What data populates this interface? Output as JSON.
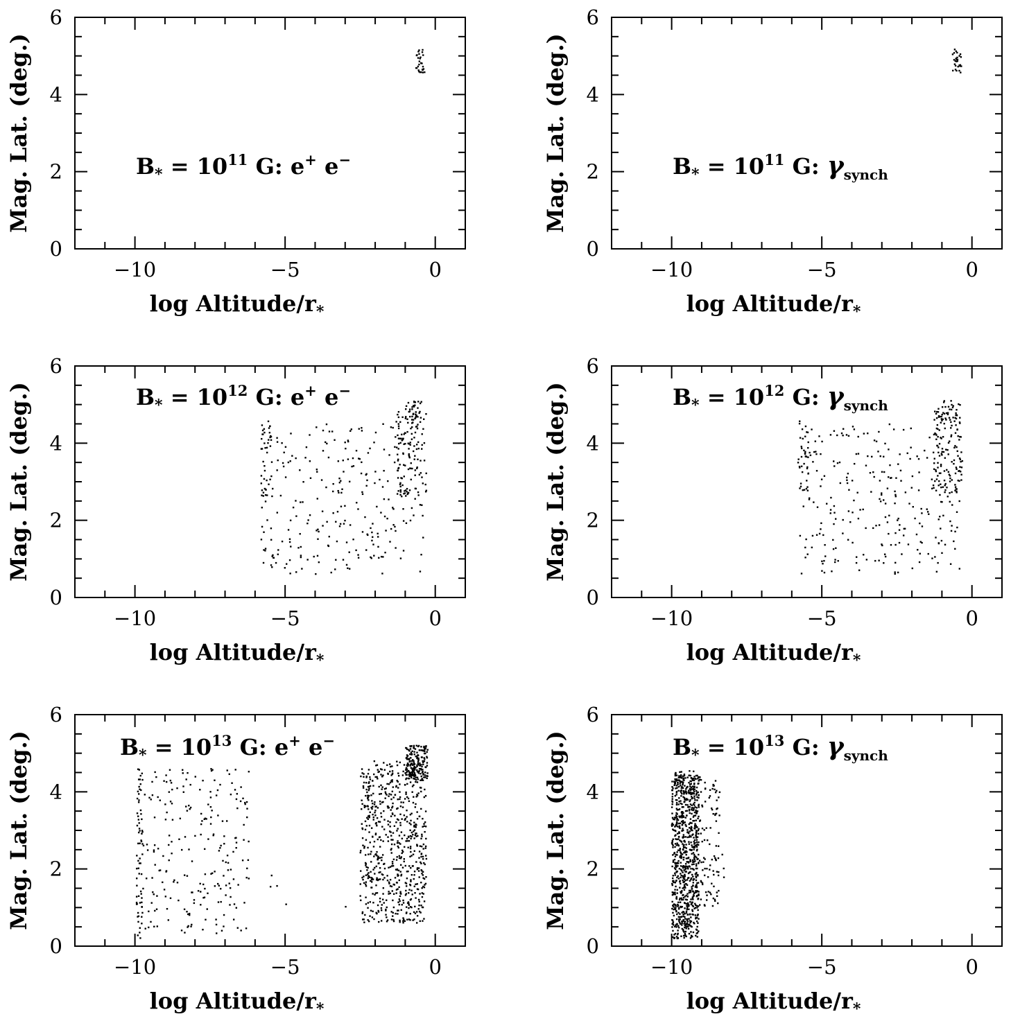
{
  "chart_data": [
    {
      "type": "scatter",
      "panel": "top-left",
      "annotation": {
        "prefix": "B",
        "sub": "*",
        "eq": " = 10",
        "exp": "11",
        "rest": " G: e",
        "sup1": "+",
        "mid": " e",
        "sup2": "−",
        "synch": false
      },
      "xlabel": "log Altitude/r",
      "xlabel_sub": "*",
      "ylabel": "Mag. Lat. (deg.)",
      "xlim": [
        -12,
        1
      ],
      "ylim": [
        0,
        6
      ],
      "xticks": [
        {
          "v": -10,
          "t": "−10"
        },
        {
          "v": -5,
          "t": "−5"
        },
        {
          "v": 0,
          "t": "0"
        }
      ],
      "yticks": [
        {
          "v": 0,
          "t": "0"
        },
        {
          "v": 2,
          "t": "2"
        },
        {
          "v": 4,
          "t": "4"
        },
        {
          "v": 6,
          "t": "6"
        }
      ],
      "clusters": [
        {
          "n": 28,
          "x": [
            -0.65,
            -0.35
          ],
          "y": [
            4.55,
            5.2
          ],
          "seed": 11
        }
      ]
    },
    {
      "type": "scatter",
      "panel": "top-right",
      "annotation": {
        "prefix": "B",
        "sub": "*",
        "eq": " = 10",
        "exp": "11",
        "rest": " G: ",
        "synch": true,
        "gamma": "γ",
        "gamma_sub": "synch"
      },
      "xlabel": "log Altitude/r",
      "xlabel_sub": "*",
      "ylabel": "Mag. Lat. (deg.)",
      "xlim": [
        -12,
        1
      ],
      "ylim": [
        0,
        6
      ],
      "xticks": [
        {
          "v": -10,
          "t": "−10"
        },
        {
          "v": -5,
          "t": "−5"
        },
        {
          "v": 0,
          "t": "0"
        }
      ],
      "yticks": [
        {
          "v": 0,
          "t": "0"
        },
        {
          "v": 2,
          "t": "2"
        },
        {
          "v": 4,
          "t": "4"
        },
        {
          "v": 6,
          "t": "6"
        }
      ],
      "clusters": [
        {
          "n": 28,
          "x": [
            -0.65,
            -0.35
          ],
          "y": [
            4.55,
            5.2
          ],
          "seed": 12
        }
      ]
    },
    {
      "type": "scatter",
      "panel": "middle-left",
      "annotation": {
        "prefix": "B",
        "sub": "*",
        "eq": " = 10",
        "exp": "12",
        "rest": " G: e",
        "sup1": "+",
        "mid": " e",
        "sup2": "−",
        "synch": false
      },
      "xlabel": "log Altitude/r",
      "xlabel_sub": "*",
      "ylabel": "Mag. Lat. (deg.)",
      "xlim": [
        -12,
        1
      ],
      "ylim": [
        0,
        6
      ],
      "xticks": [
        {
          "v": -10,
          "t": "−10"
        },
        {
          "v": -5,
          "t": "−5"
        },
        {
          "v": 0,
          "t": "0"
        }
      ],
      "yticks": [
        {
          "v": 0,
          "t": "0"
        },
        {
          "v": 2,
          "t": "2"
        },
        {
          "v": 4,
          "t": "4"
        },
        {
          "v": 6,
          "t": "6"
        }
      ],
      "clusters": [
        {
          "n": 260,
          "x": [
            -5.8,
            -0.4
          ],
          "y": [
            0.6,
            4.5
          ],
          "seed": 21
        },
        {
          "n": 40,
          "x": [
            -5.8,
            -5.4
          ],
          "y": [
            2.5,
            4.6
          ],
          "seed": 22
        },
        {
          "n": 120,
          "x": [
            -1.3,
            -0.3
          ],
          "y": [
            2.6,
            4.9
          ],
          "seed": 23
        },
        {
          "n": 25,
          "x": [
            -1.0,
            -0.4
          ],
          "y": [
            4.6,
            5.1
          ],
          "seed": 24
        }
      ]
    },
    {
      "type": "scatter",
      "panel": "middle-right",
      "annotation": {
        "prefix": "B",
        "sub": "*",
        "eq": " = 10",
        "exp": "12",
        "rest": " G: ",
        "synch": true,
        "gamma": "γ",
        "gamma_sub": "synch"
      },
      "xlabel": "log Altitude/r",
      "xlabel_sub": "*",
      "ylabel": "Mag. Lat. (deg.)",
      "xlim": [
        -12,
        1
      ],
      "ylim": [
        0,
        6
      ],
      "xticks": [
        {
          "v": -10,
          "t": "−10"
        },
        {
          "v": -5,
          "t": "−5"
        },
        {
          "v": 0,
          "t": "0"
        }
      ],
      "yticks": [
        {
          "v": 0,
          "t": "0"
        },
        {
          "v": 2,
          "t": "2"
        },
        {
          "v": 4,
          "t": "4"
        },
        {
          "v": 6,
          "t": "6"
        }
      ],
      "clusters": [
        {
          "n": 260,
          "x": [
            -5.8,
            -0.4
          ],
          "y": [
            0.6,
            4.5
          ],
          "seed": 31
        },
        {
          "n": 40,
          "x": [
            -5.8,
            -5.4
          ],
          "y": [
            2.5,
            4.6
          ],
          "seed": 32
        },
        {
          "n": 120,
          "x": [
            -1.3,
            -0.3
          ],
          "y": [
            2.6,
            4.9
          ],
          "seed": 33
        },
        {
          "n": 25,
          "x": [
            -1.0,
            -0.4
          ],
          "y": [
            4.6,
            5.1
          ],
          "seed": 34
        }
      ]
    },
    {
      "type": "scatter",
      "panel": "bottom-left",
      "annotation": {
        "prefix": "B",
        "sub": "*",
        "eq": " = 10",
        "exp": "13",
        "rest": " G: e",
        "sup1": "+",
        "mid": " e",
        "sup2": "−",
        "synch": false
      },
      "xlabel": "log Altitude/r",
      "xlabel_sub": "*",
      "ylabel": "Mag. Lat. (deg.)",
      "xlim": [
        -12,
        1
      ],
      "ylim": [
        0,
        6
      ],
      "xticks": [
        {
          "v": -10,
          "t": "−10"
        },
        {
          "v": -5,
          "t": "−5"
        },
        {
          "v": 0,
          "t": "0"
        }
      ],
      "yticks": [
        {
          "v": 0,
          "t": "0"
        },
        {
          "v": 2,
          "t": "2"
        },
        {
          "v": 4,
          "t": "4"
        },
        {
          "v": 6,
          "t": "6"
        }
      ],
      "clusters": [
        {
          "n": 70,
          "x": [
            -9.95,
            -9.75
          ],
          "y": [
            0.2,
            4.6
          ],
          "seed": 41
        },
        {
          "n": 220,
          "x": [
            -9.8,
            -6.2
          ],
          "y": [
            0.3,
            4.6
          ],
          "seed": 42
        },
        {
          "n": 6,
          "x": [
            -6.5,
            -2.5
          ],
          "y": [
            0.9,
            4.5
          ],
          "seed": 43
        },
        {
          "n": 700,
          "x": [
            -2.5,
            -0.3
          ],
          "y": [
            0.6,
            4.8
          ],
          "seed": 44
        },
        {
          "n": 160,
          "x": [
            -1.0,
            -0.25
          ],
          "y": [
            4.3,
            5.2
          ],
          "seed": 45
        }
      ]
    },
    {
      "type": "scatter",
      "panel": "bottom-right",
      "annotation": {
        "prefix": "B",
        "sub": "*",
        "eq": " = 10",
        "exp": "13",
        "rest": " G: ",
        "synch": true,
        "gamma": "γ",
        "gamma_sub": "synch"
      },
      "xlabel": "log Altitude/r",
      "xlabel_sub": "*",
      "ylabel": "Mag. Lat. (deg.)",
      "xlim": [
        -12,
        1
      ],
      "ylim": [
        0,
        6
      ],
      "xticks": [
        {
          "v": -10,
          "t": "−10"
        },
        {
          "v": -5,
          "t": "−5"
        },
        {
          "v": 0,
          "t": "0"
        }
      ],
      "yticks": [
        {
          "v": 0,
          "t": "0"
        },
        {
          "v": 2,
          "t": "2"
        },
        {
          "v": 4,
          "t": "4"
        },
        {
          "v": 6,
          "t": "6"
        }
      ],
      "clusters": [
        {
          "n": 850,
          "x": [
            -10.0,
            -9.1
          ],
          "y": [
            0.2,
            4.55
          ],
          "seed": 51
        },
        {
          "n": 120,
          "x": [
            -9.3,
            -8.4
          ],
          "y": [
            1.0,
            4.4
          ],
          "seed": 52
        },
        {
          "n": 10,
          "x": [
            -8.6,
            -8.2
          ],
          "y": [
            1.7,
            4.4
          ],
          "seed": 53
        }
      ]
    }
  ]
}
